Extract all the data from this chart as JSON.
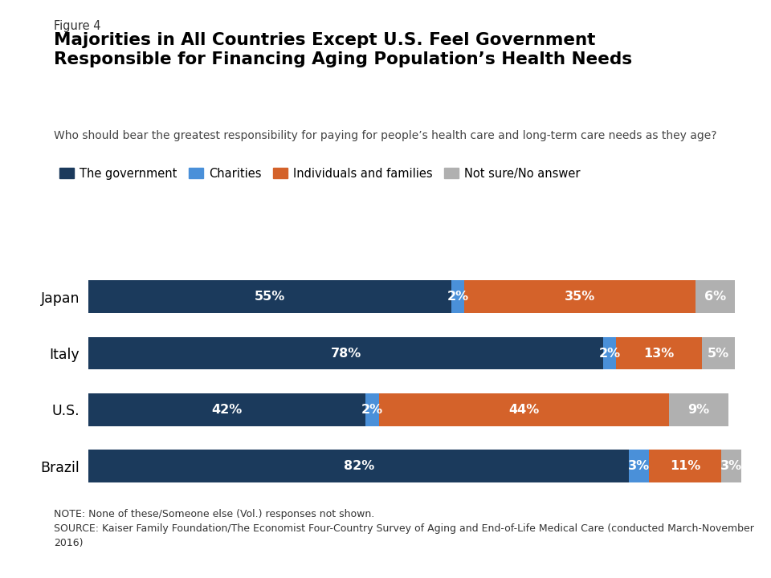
{
  "title_label": "Figure 4",
  "title": "Majorities in All Countries Except U.S. Feel Government\nResponsible for Financing Aging Population’s Health Needs",
  "subtitle": "Who should bear the greatest responsibility for paying for people’s health care and long-term care needs as they age?",
  "countries": [
    "Japan",
    "Italy",
    "U.S.",
    "Brazil"
  ],
  "categories": [
    "The government",
    "Charities",
    "Individuals and families",
    "Not sure/No answer"
  ],
  "colors": [
    "#1b3a5c",
    "#4a90d9",
    "#d4622a",
    "#b0b0b0"
  ],
  "data": {
    "Japan": [
      55,
      2,
      35,
      6
    ],
    "Italy": [
      78,
      2,
      13,
      5
    ],
    "U.S.": [
      42,
      2,
      44,
      9
    ],
    "Brazil": [
      82,
      3,
      11,
      3
    ]
  },
  "note": "NOTE: None of these/Someone else (Vol.) responses not shown.\nSOURCE: Kaiser Family Foundation/The Economist Four-Country Survey of Aging and End-of-Life Medical Care (conducted March-November\n2016)",
  "bar_height": 0.58,
  "background_color": "#ffffff"
}
